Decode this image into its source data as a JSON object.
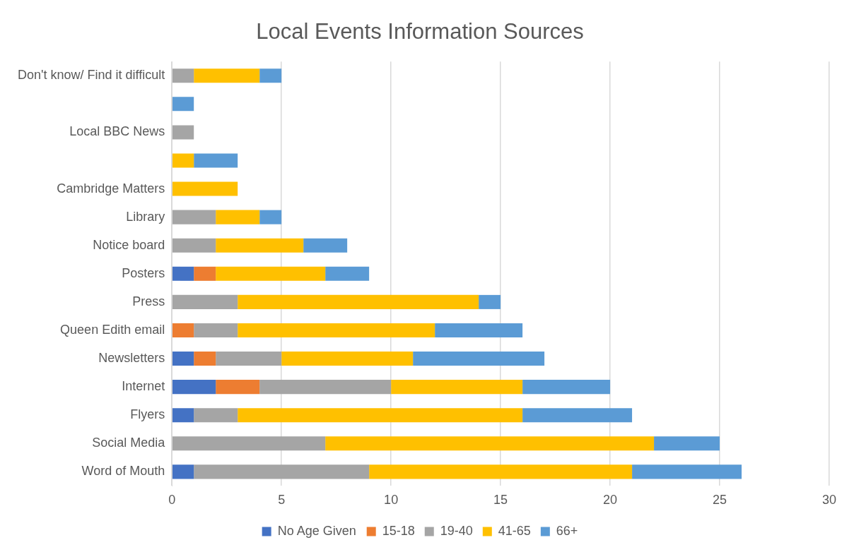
{
  "chart_data": {
    "type": "bar",
    "orientation": "horizontal",
    "stacked": true,
    "title": "Local Events Information Sources",
    "categories": [
      "Don't know/ Find it difficult",
      null,
      "Local BBC News",
      null,
      "Cambridge Matters",
      "Library",
      "Notice board",
      "Posters",
      "Press",
      "Queen Edith email",
      "Newsletters",
      "Internet",
      "Flyers",
      "Social Media",
      "Word of Mouth"
    ],
    "series": [
      {
        "name": "No Age Given",
        "color": "#4472c4",
        "values": [
          0,
          0,
          0,
          0,
          0,
          0,
          0,
          1,
          0,
          0,
          1,
          2,
          1,
          0,
          1
        ]
      },
      {
        "name": "15-18",
        "color": "#ed7d31",
        "values": [
          0,
          0,
          0,
          0,
          0,
          0,
          0,
          1,
          0,
          1,
          1,
          2,
          0,
          0,
          0
        ]
      },
      {
        "name": "19-40",
        "color": "#a5a5a5",
        "values": [
          1,
          0,
          1,
          0,
          0,
          2,
          2,
          0,
          3,
          2,
          3,
          6,
          2,
          7,
          8
        ]
      },
      {
        "name": "41-65",
        "color": "#ffc000",
        "values": [
          3,
          0,
          0,
          1,
          3,
          2,
          4,
          5,
          11,
          9,
          6,
          6,
          13,
          15,
          12
        ]
      },
      {
        "name": "66+",
        "color": "#5b9bd5",
        "values": [
          1,
          1,
          0,
          2,
          0,
          1,
          2,
          2,
          1,
          4,
          6,
          4,
          5,
          3,
          5
        ]
      }
    ],
    "xlim": [
      0,
      30
    ],
    "xticks": [
      0,
      5,
      10,
      15,
      20,
      25,
      30
    ],
    "grid": "x",
    "legend": "bottom"
  }
}
